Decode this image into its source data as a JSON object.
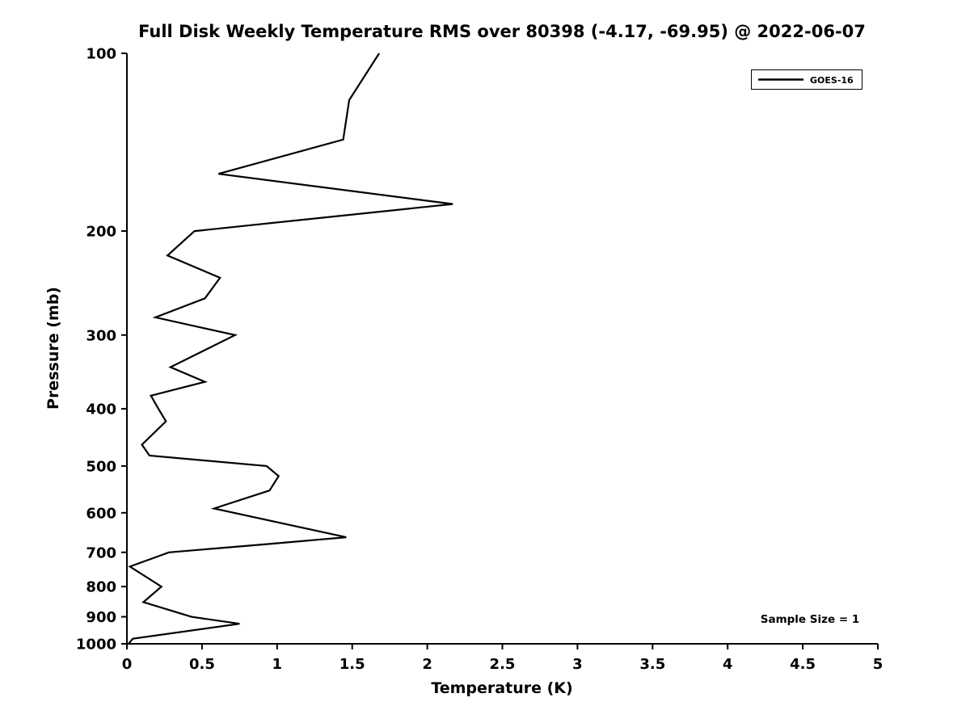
{
  "title": "Full Disk Weekly Temperature RMS over 80398 (-4.17, -69.95) @ 2022-06-07",
  "legend": {
    "label": "GOES-16",
    "line_color": "#000000"
  },
  "annotations": {
    "sample_size": "Sample Size = 1"
  },
  "chart_data": {
    "type": "line",
    "title": "Full Disk Weekly Temperature RMS over 80398 (-4.17, -69.95) @ 2022-06-07",
    "xlabel": "Temperature (K)",
    "ylabel": "Pressure (mb)",
    "xlim": [
      0,
      5
    ],
    "ylim": [
      100,
      1000
    ],
    "y_scale": "log",
    "y_inverted": true,
    "grid": false,
    "legend_position": "top-right",
    "x_ticks": [
      0,
      0.5,
      1,
      1.5,
      2,
      2.5,
      3,
      3.5,
      4,
      4.5,
      5
    ],
    "y_ticks": [
      100,
      200,
      300,
      400,
      500,
      600,
      700,
      800,
      900,
      1000
    ],
    "series": [
      {
        "name": "GOES-16",
        "color": "#000000",
        "pressure_mb": [
          100,
          120,
          140,
          160,
          180,
          200,
          220,
          240,
          260,
          280,
          300,
          340,
          360,
          380,
          400,
          420,
          460,
          480,
          500,
          520,
          550,
          590,
          660,
          680,
          700,
          740,
          800,
          850,
          900,
          925,
          980,
          1000
        ],
        "temperature_k": [
          1.68,
          1.48,
          1.44,
          0.61,
          2.17,
          0.45,
          0.27,
          0.62,
          0.52,
          0.19,
          0.72,
          0.29,
          0.52,
          0.16,
          0.21,
          0.26,
          0.1,
          0.15,
          0.93,
          1.01,
          0.95,
          0.58,
          1.46,
          0.87,
          0.28,
          0.02,
          0.23,
          0.11,
          0.43,
          0.75,
          0.04,
          0.01
        ]
      }
    ]
  }
}
